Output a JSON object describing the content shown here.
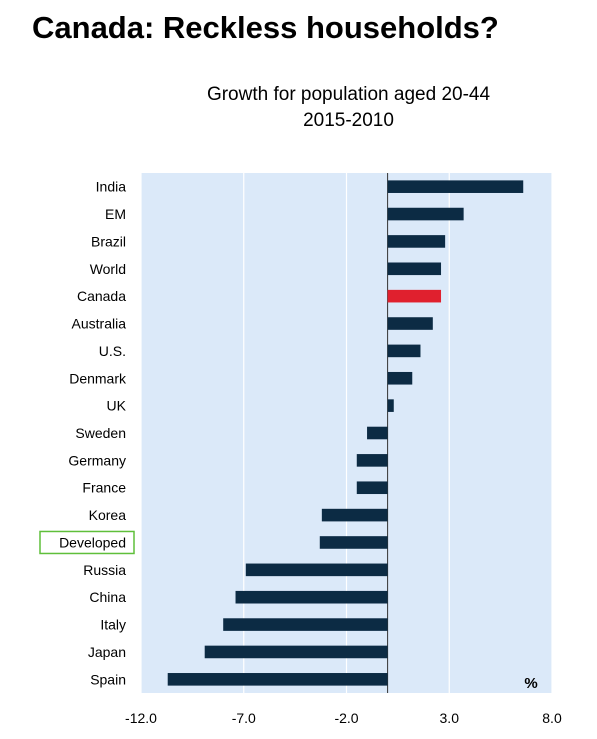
{
  "page": {
    "title": "Canada: Reckless households?"
  },
  "chart_data": {
    "type": "bar",
    "orientation": "horizontal",
    "title": "Growth for population aged 20-44",
    "subtitle": "2015-2010",
    "unit_label": "%",
    "categories": [
      "India",
      "EM",
      "Brazil",
      "World",
      "Canada",
      "Australia",
      "U.S.",
      "Denmark",
      "UK",
      "Sweden",
      "Germany",
      "France",
      "Korea",
      "Developed",
      "Russia",
      "China",
      "Italy",
      "Japan",
      "Spain"
    ],
    "values": [
      6.6,
      3.7,
      2.8,
      2.6,
      2.6,
      2.2,
      1.6,
      1.2,
      0.3,
      -1.0,
      -1.5,
      -1.5,
      -3.2,
      -3.3,
      -6.9,
      -7.4,
      -8.0,
      -8.9,
      -10.7
    ],
    "highlight_category": "Canada",
    "highlighted_label_box": "Developed",
    "xlim": [
      -12.0,
      8.0
    ],
    "xticks": [
      -12.0,
      -7.0,
      -2.0,
      3.0,
      8.0
    ],
    "xtick_labels": [
      "-12.0",
      "-7.0",
      "-2.0",
      "3.0",
      "8.0"
    ],
    "grid": "vertical",
    "colors": {
      "bar": "#0c2b44",
      "highlight": "#e0202e",
      "plot_background": "#dbe9f9",
      "gridline": "#ffffff",
      "label_box_border": "#5fbf3a"
    }
  }
}
